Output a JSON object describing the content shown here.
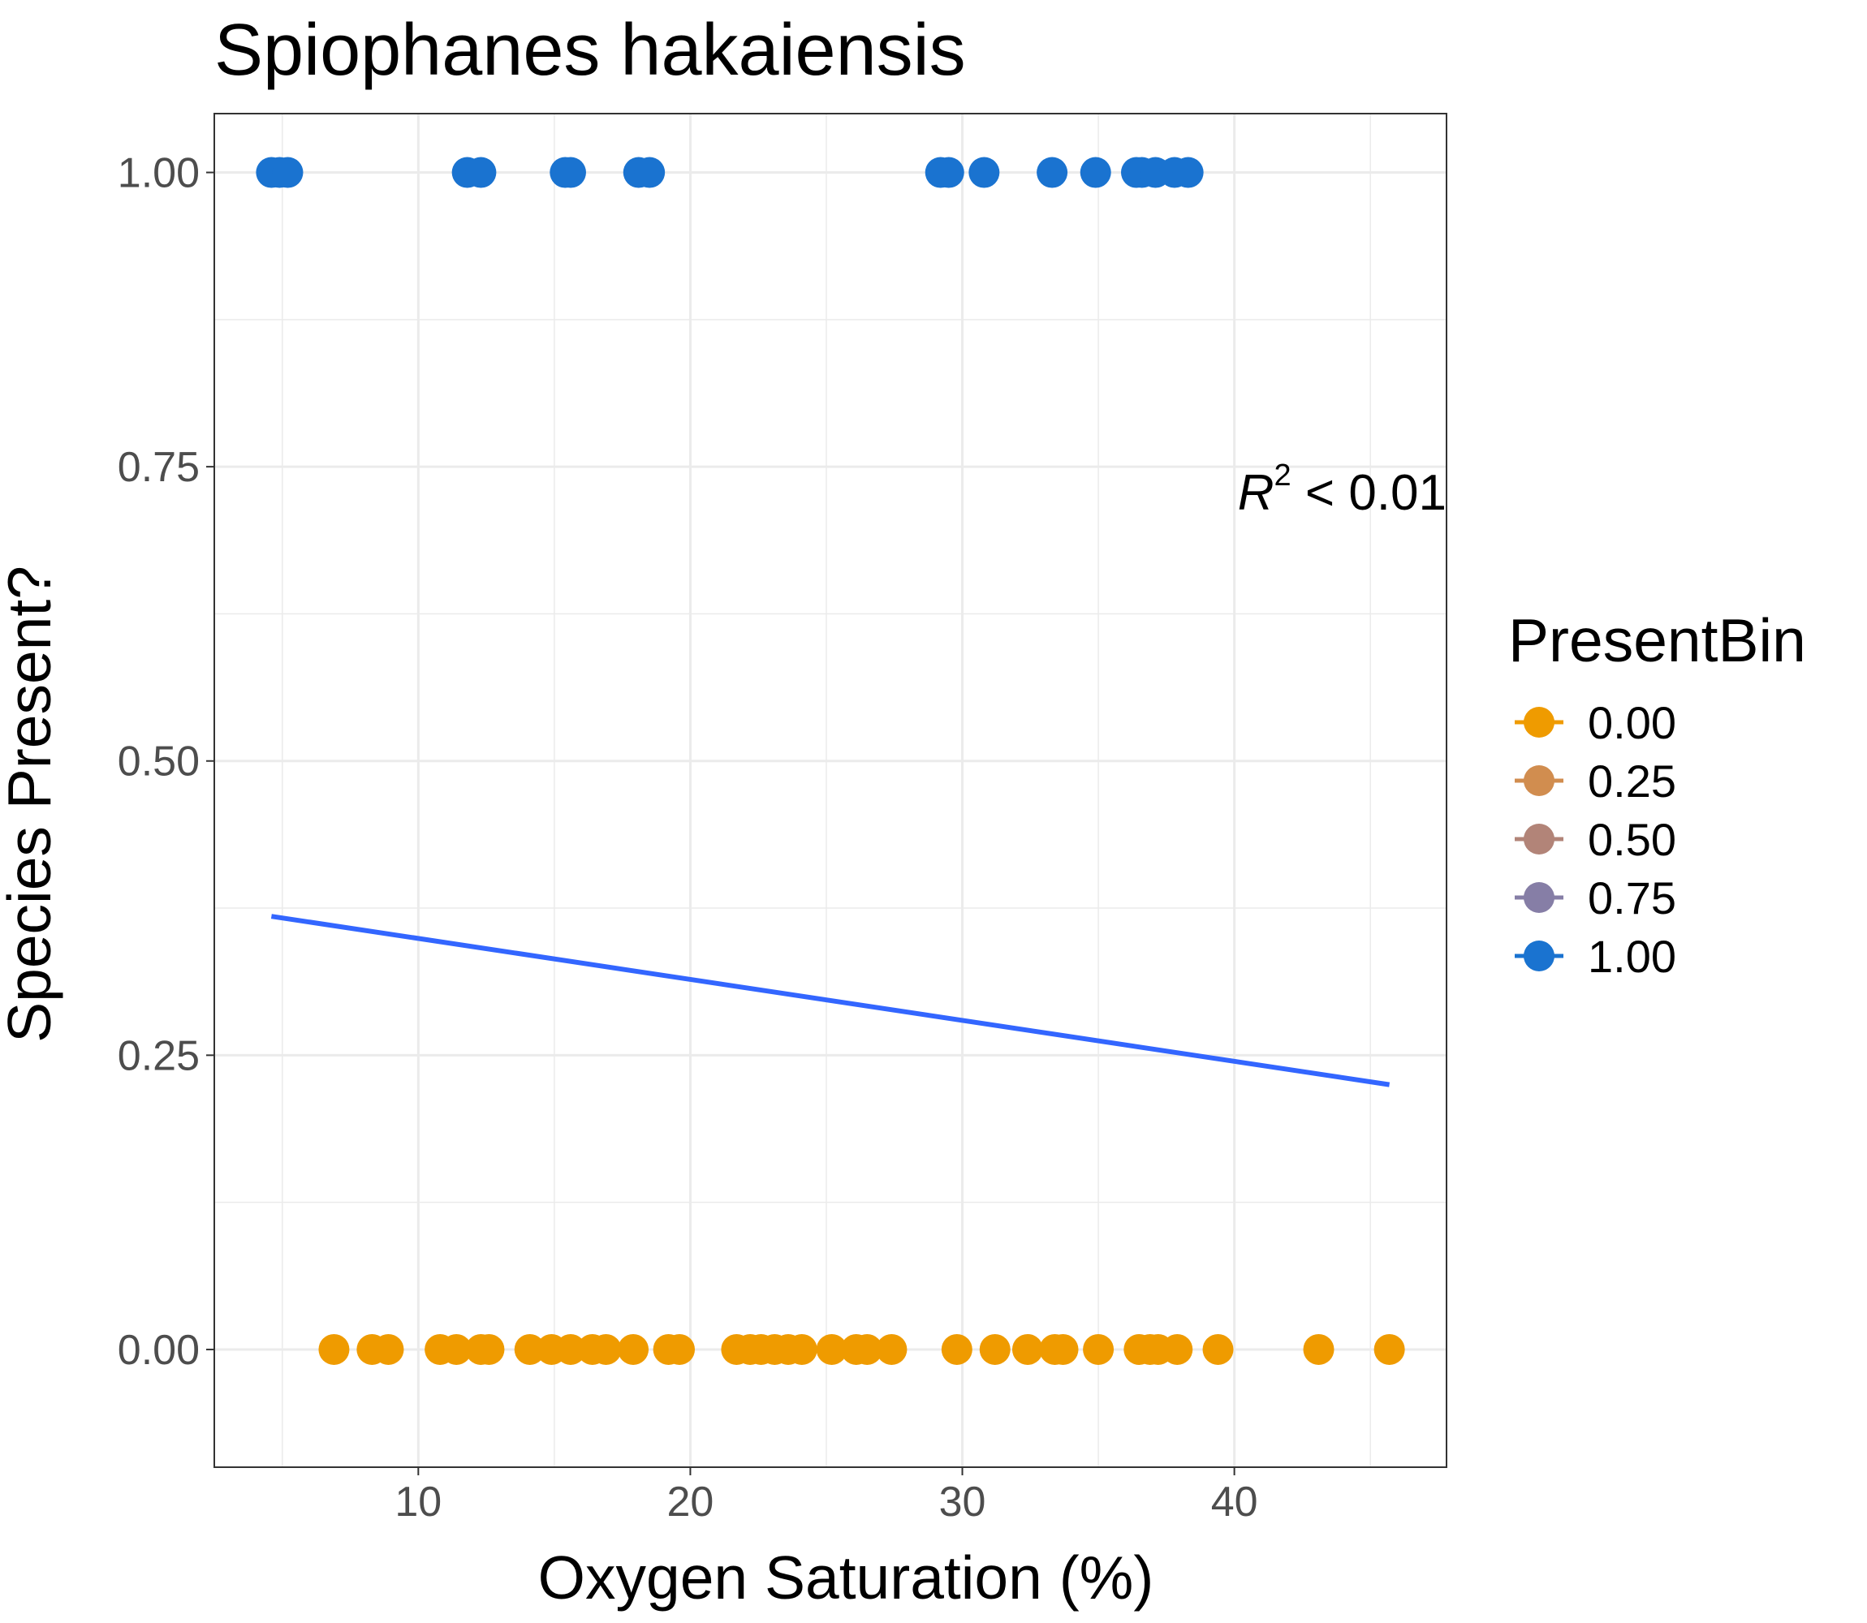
{
  "chart_data": {
    "type": "scatter",
    "title": "Spiophanes hakaiensis",
    "xlabel": "Oxygen Saturation (%)",
    "ylabel": "Species Present?",
    "xlim": [
      2.5,
      47.8
    ],
    "ylim": [
      -0.1,
      1.05
    ],
    "x_ticks": [
      10,
      20,
      30,
      40
    ],
    "x_tick_labels": [
      "10",
      "20",
      "30",
      "40"
    ],
    "y_ticks": [
      0,
      0.25,
      0.5,
      0.75,
      1
    ],
    "y_tick_labels": [
      "0.00",
      "0.25",
      "0.50",
      "0.75",
      "1.00"
    ],
    "grid": true,
    "legend": {
      "title": "PresentBin",
      "placement": "right",
      "entries": [
        {
          "label": "0.00",
          "color": "#ef9b00"
        },
        {
          "label": "0.25",
          "color": "#d18d4f"
        },
        {
          "label": "0.50",
          "color": "#b28478"
        },
        {
          "label": "0.75",
          "color": "#867ea6"
        },
        {
          "label": "1.00",
          "color": "#1a73d0"
        }
      ]
    },
    "series": [
      {
        "name": "1.00",
        "color": "#1a73d0",
        "x": [
          4.6,
          4.9,
          5.2,
          11.8,
          12.3,
          15.4,
          15.6,
          18.1,
          18.5,
          29.2,
          29.5,
          30.8,
          33.3,
          34.9,
          36.4,
          36.6,
          37.1,
          37.8,
          38.3
        ],
        "y": [
          1,
          1,
          1,
          1,
          1,
          1,
          1,
          1,
          1,
          1,
          1,
          1,
          1,
          1,
          1,
          1,
          1,
          1,
          1
        ]
      },
      {
        "name": "0.00",
        "color": "#ef9b00",
        "x": [
          6.9,
          8.3,
          8.9,
          10.8,
          11.4,
          12.3,
          12.6,
          14.1,
          14.9,
          15.6,
          16.4,
          16.9,
          17.9,
          19.2,
          19.6,
          21.7,
          22.2,
          22.6,
          23.1,
          23.6,
          24.1,
          25.2,
          26.1,
          26.5,
          27.4,
          29.8,
          31.2,
          32.4,
          33.4,
          33.7,
          35.0,
          36.5,
          36.9,
          37.2,
          37.9,
          39.4,
          43.1,
          45.7
        ],
        "y": [
          0,
          0,
          0,
          0,
          0,
          0,
          0,
          0,
          0,
          0,
          0,
          0,
          0,
          0,
          0,
          0,
          0,
          0,
          0,
          0,
          0,
          0,
          0,
          0,
          0,
          0,
          0,
          0,
          0,
          0,
          0,
          0,
          0,
          0,
          0,
          0,
          0,
          0
        ]
      }
    ],
    "fit_line": {
      "color": "#3366ff",
      "x": [
        4.6,
        45.7
      ],
      "y": [
        0.368,
        0.225
      ]
    },
    "annotation": {
      "label_symbol": "R",
      "label_power": "2",
      "label_rest": " < 0.01",
      "x": 45.8,
      "y": 0.74
    }
  }
}
